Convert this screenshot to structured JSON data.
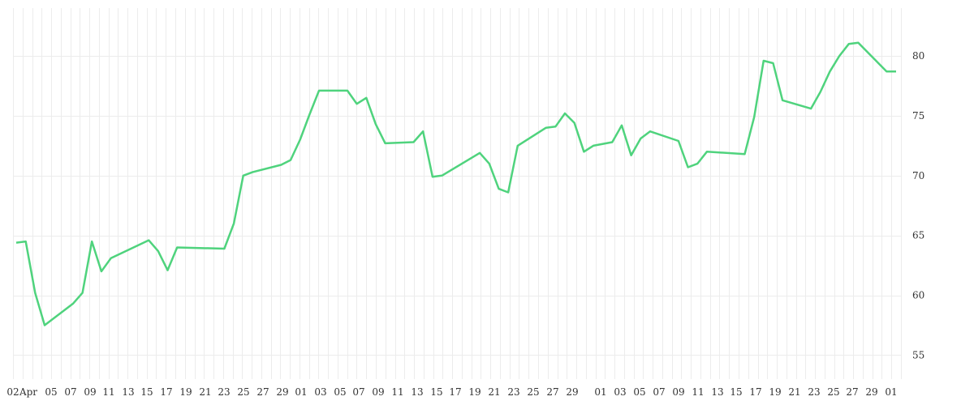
{
  "chart_data": {
    "type": "line",
    "title": "",
    "xlabel": "",
    "ylabel": "",
    "ylim": [
      53,
      84
    ],
    "grid": true,
    "legend": "none",
    "line_color": "#4fd37d",
    "y_ticks": [
      55,
      60,
      65,
      70,
      75,
      80
    ],
    "y_axis_side": "right",
    "x_ticks": [
      "02",
      "Apr",
      "05",
      "07",
      "09",
      "11",
      "13",
      "15",
      "17",
      "19",
      "21",
      "23",
      "25",
      "27",
      "29",
      "01",
      "03",
      "05",
      "07",
      "09",
      "11",
      "13",
      "15",
      "17",
      "19",
      "21",
      "23",
      "25",
      "27",
      "29",
      "01",
      "03",
      "05",
      "07",
      "09",
      "11",
      "13",
      "15",
      "17",
      "19",
      "21",
      "23",
      "25",
      "27",
      "29",
      "01"
    ],
    "series": [
      {
        "x": [
          0,
          1,
          2,
          3,
          6,
          7,
          8,
          9,
          10,
          14,
          15,
          16,
          17,
          22,
          23,
          24,
          25,
          28,
          29,
          30,
          31,
          32,
          35,
          36,
          37,
          38,
          39,
          42,
          43,
          44,
          45,
          49,
          50,
          51,
          52,
          53,
          56,
          57,
          58,
          59,
          60,
          61,
          63,
          64,
          65,
          66,
          67,
          70,
          71,
          72,
          73,
          77,
          78,
          79,
          80,
          81,
          84,
          85,
          86,
          87,
          88,
          89,
          92,
          93
        ],
        "values": [
          64.4,
          64.5,
          60.2,
          57.5,
          59.3,
          60.2,
          64.5,
          62.0,
          63.1,
          64.6,
          63.7,
          62.1,
          64.0,
          63.9,
          66.0,
          70.0,
          70.3,
          70.9,
          71.3,
          73.0,
          75.1,
          77.1,
          77.1,
          76.0,
          76.5,
          74.3,
          72.7,
          72.8,
          73.7,
          69.9,
          70.0,
          71.9,
          71.0,
          68.9,
          68.6,
          72.5,
          74.0,
          74.1,
          75.2,
          74.4,
          72.0,
          72.5,
          72.8,
          74.2,
          71.7,
          73.1,
          73.7,
          72.9,
          70.7,
          71.0,
          72.0,
          71.8,
          74.9,
          79.6,
          79.4,
          76.3,
          75.6,
          77.0,
          78.7,
          80.0,
          81.0,
          81.1,
          78.7,
          78.7
        ]
      }
    ]
  }
}
